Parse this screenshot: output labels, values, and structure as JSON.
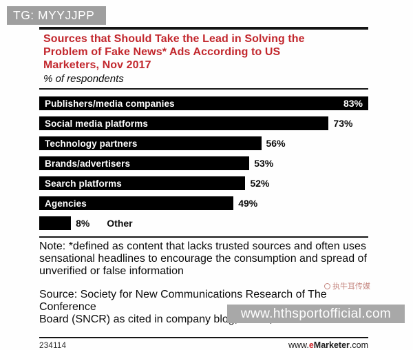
{
  "overlays": {
    "tg_tag": "TG: MYYJJPP",
    "cn_watermark": "执牛耳传媒",
    "banner_text": "www.hthsportofficial.com"
  },
  "chart": {
    "title_lines": {
      "0": "Sources that Should Take the Lead in Solving the",
      "1": "Problem of Fake News* Ads According to US",
      "2": "Marketers, Nov 2017"
    },
    "subtitle": "% of respondents",
    "note_lines": {
      "0": "Note: *defined as content that lacks trusted sources and often uses",
      "1": "sensational headlines to encourage the consumption and spread of",
      "2": "unverified or false information"
    },
    "source_lines": {
      "0": "Source: Society for New Communications Research of The Conference",
      "1": "Board (SNCR) as cited in company blog, Dec 7, 2017"
    }
  },
  "chart_data": {
    "type": "bar",
    "orientation": "horizontal",
    "title": "Sources that Should Take the Lead in Solving the Problem of Fake News* Ads According to US Marketers, Nov 2017",
    "subtitle": "% of respondents",
    "categories": [
      "Publishers/media companies",
      "Social media platforms",
      "Technology partners",
      "Brands/advertisers",
      "Search platforms",
      "Agencies",
      "Other"
    ],
    "values": [
      83,
      73,
      56,
      53,
      52,
      49,
      8
    ],
    "unit": "%",
    "axis_max": 83,
    "grid": false,
    "bar_color": "#000000",
    "value_labels": [
      "83%",
      "73%",
      "56%",
      "53%",
      "52%",
      "49%",
      "8%"
    ]
  },
  "bars": [
    {
      "label": "Publishers/media companies",
      "value": "83%"
    },
    {
      "label": "Social media platforms",
      "value": "73%"
    },
    {
      "label": "Technology partners",
      "value": "56%"
    },
    {
      "label": "Brands/advertisers",
      "value": "53%"
    },
    {
      "label": "Search platforms",
      "value": "52%"
    },
    {
      "label": "Agencies",
      "value": "49%"
    },
    {
      "label": "",
      "value": "8%",
      "outside_label": "Other"
    }
  ],
  "footer": {
    "chart_id": "234114",
    "url_www": "www.",
    "url_e": "e",
    "url_marketer": "Marketer",
    "url_com": ".com"
  },
  "colors": {
    "title_red": "#c2272d",
    "bar_black": "#000000",
    "tag_gray": "#9f9f9f",
    "banner_gray": "#a8a8a8",
    "emarketer_red": "#cb2127",
    "watermark_red": "#bb7068"
  }
}
